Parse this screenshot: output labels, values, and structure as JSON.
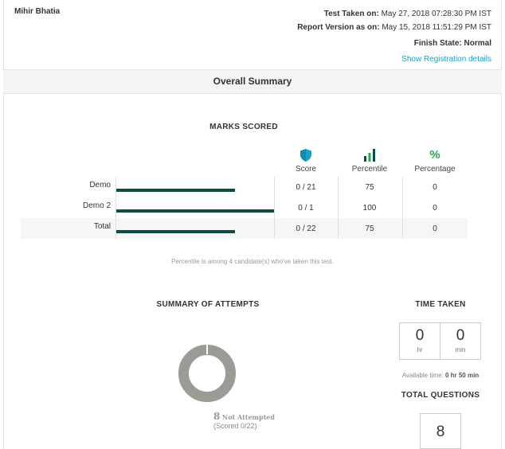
{
  "candidate": {
    "name": "Mihir Bhatia"
  },
  "meta": {
    "test_taken_label": "Test Taken on:",
    "test_taken_value": "May 27, 2018 07:28:30 PM IST",
    "report_version_label": "Report Version as on:",
    "report_version_value": "May 15, 2018 11:51:29 PM IST",
    "finish_state_label": "Finish State:",
    "finish_state_value": "Normal",
    "registration_link": "Show Registration details"
  },
  "summary_title": "Overall Summary",
  "marks": {
    "title": "MARKS SCORED",
    "columns": [
      {
        "label": "Score",
        "icon": "shield-icon"
      },
      {
        "label": "Percentile",
        "icon": "bar-chart-icon"
      },
      {
        "label": "Percentage",
        "icon": "percent-icon"
      }
    ],
    "rows": [
      {
        "label": "Demo",
        "score": "0 / 21",
        "percentile": "75",
        "percentage": "0",
        "percentile_value": 75
      },
      {
        "label": "Demo 2",
        "score": "0 / 1",
        "percentile": "100",
        "percentage": "0",
        "percentile_value": 100
      },
      {
        "label": "Total",
        "score": "0 / 22",
        "percentile": "75",
        "percentage": "0",
        "percentile_value": 75
      }
    ],
    "note": "Percentile is among 4 candidate(s) who've taken this test."
  },
  "attempts": {
    "title": "SUMMARY OF ATTEMPTS",
    "not_attempted_count": "8",
    "not_attempted_label": "Not Attempted",
    "scored": "(Scored 0/22)"
  },
  "time_taken": {
    "title": "TIME TAKEN",
    "hours": "0",
    "hours_unit": "hr",
    "minutes": "0",
    "minutes_unit": "min",
    "available_label": "Available time:",
    "available_value": "0 hr 50 min"
  },
  "total_questions": {
    "title": "TOTAL QUESTIONS",
    "value": "8"
  },
  "colors": {
    "accent": "#1aa1c9",
    "bar": "#0e4b45",
    "green": "#2aa84a",
    "donut": "#9b9a95"
  }
}
